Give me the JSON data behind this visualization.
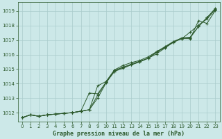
{
  "title": "Graphe pression niveau de la mer (hPa)",
  "background_color": "#cce8e8",
  "grid_color": "#aacccc",
  "line_color": "#2d5a2d",
  "xlim": [
    -0.5,
    23.5
  ],
  "ylim": [
    1011.4,
    1019.6
  ],
  "yticks": [
    1012,
    1013,
    1014,
    1015,
    1016,
    1017,
    1018,
    1019
  ],
  "xticks": [
    0,
    1,
    2,
    3,
    4,
    5,
    6,
    7,
    8,
    9,
    10,
    11,
    12,
    13,
    14,
    15,
    16,
    17,
    18,
    19,
    20,
    21,
    22,
    23
  ],
  "series": [
    [
      1011.65,
      1011.85,
      1011.75,
      1011.85,
      1011.9,
      1011.95,
      1012.0,
      1012.1,
      1012.2,
      1013.2,
      1014.1,
      1014.95,
      1015.25,
      1015.45,
      1015.6,
      1015.85,
      1016.2,
      1016.55,
      1016.9,
      1017.15,
      1017.2,
      1017.95,
      1018.55,
      1019.2
    ],
    [
      1011.65,
      1011.85,
      1011.75,
      1011.85,
      1011.9,
      1011.95,
      1012.0,
      1012.1,
      1012.2,
      1013.85,
      1014.15,
      1014.95,
      1015.1,
      1015.35,
      1015.55,
      1015.75,
      1016.05,
      1016.45,
      1016.85,
      1017.1,
      1017.55,
      1018.05,
      1018.45,
      1019.1
    ],
    [
      1011.65,
      1011.85,
      1011.75,
      1011.85,
      1011.9,
      1011.95,
      1012.0,
      1012.1,
      1012.2,
      1013.0,
      1014.05,
      1014.85,
      1015.15,
      1015.3,
      1015.5,
      1015.75,
      1016.15,
      1016.5,
      1016.85,
      1017.15,
      1017.15,
      1017.95,
      1018.55,
      1019.15
    ],
    [
      1011.65,
      1011.85,
      1011.75,
      1011.85,
      1011.9,
      1011.95,
      1012.0,
      1012.1,
      1013.35,
      1013.3,
      1014.1,
      1014.85,
      1015.05,
      1015.3,
      1015.5,
      1015.75,
      1016.2,
      1016.5,
      1016.9,
      1017.1,
      1017.1,
      1018.35,
      1018.15,
      1019.05
    ]
  ]
}
